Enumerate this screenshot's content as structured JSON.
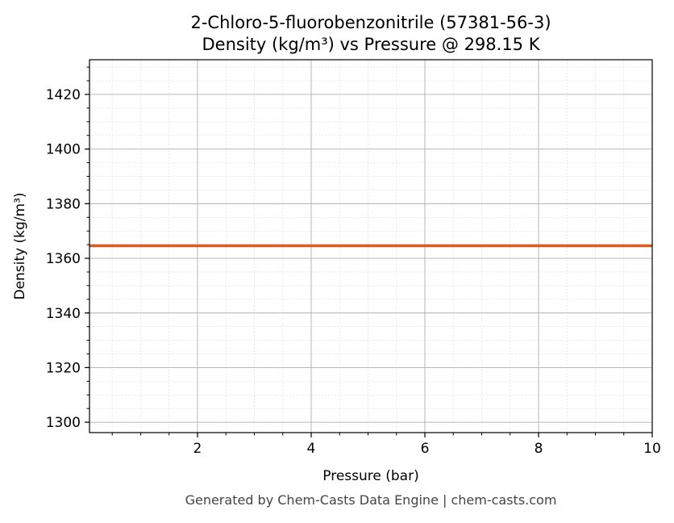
{
  "chart_data": {
    "type": "line",
    "title": "2-Chloro-5-fluorobenzonitrile (57381-56-3)",
    "subtitle": "Density (kg/m³) vs Pressure @ 298.15 K",
    "xlabel": "Pressure (bar)",
    "ylabel": "Density (kg/m³)",
    "xlim": [
      0.1,
      10
    ],
    "ylim": [
      1296.2,
      1432.7
    ],
    "xticks": [
      2,
      4,
      6,
      8,
      10
    ],
    "yticks": [
      1300,
      1320,
      1340,
      1360,
      1380,
      1400,
      1420
    ],
    "grid": true,
    "series": [
      {
        "x": [
          0.1,
          10
        ],
        "y": [
          1364.6,
          1364.6
        ],
        "color": "#e05a20"
      }
    ]
  },
  "footer": "Generated by Chem-Casts Data Engine | chem-casts.com"
}
